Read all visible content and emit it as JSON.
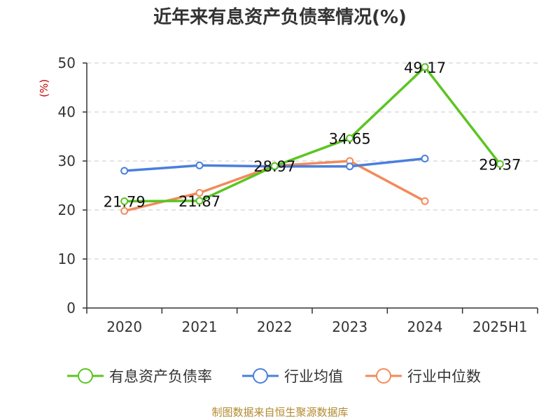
{
  "chart_data": {
    "type": "line",
    "title": "近年来有息资产负债率情况(%)",
    "ylabel": "(%)",
    "xlabel": "",
    "categories": [
      "2020",
      "2021",
      "2022",
      "2023",
      "2024",
      "2025H1"
    ],
    "ylim": [
      0,
      50
    ],
    "yticks": [
      "0",
      "10",
      "20",
      "30",
      "40",
      "50"
    ],
    "grid": true,
    "legend_position": "bottom",
    "series": [
      {
        "name": "有息资产负债率",
        "color": "#5bc522",
        "values": [
          21.79,
          21.87,
          28.97,
          34.65,
          49.17,
          29.37
        ],
        "labels": [
          "21.79",
          "21.87",
          "28.97",
          "34.65",
          "49.17",
          "29.37"
        ]
      },
      {
        "name": "行业均值",
        "color": "#4a7fdb",
        "values": [
          28.0,
          29.1,
          28.9,
          28.9,
          30.5,
          null
        ]
      },
      {
        "name": "行业中位数",
        "color": "#f28a5b",
        "values": [
          19.8,
          23.5,
          29.0,
          30.0,
          21.8,
          null
        ]
      }
    ]
  },
  "source": "制图数据来自恒生聚源数据库"
}
